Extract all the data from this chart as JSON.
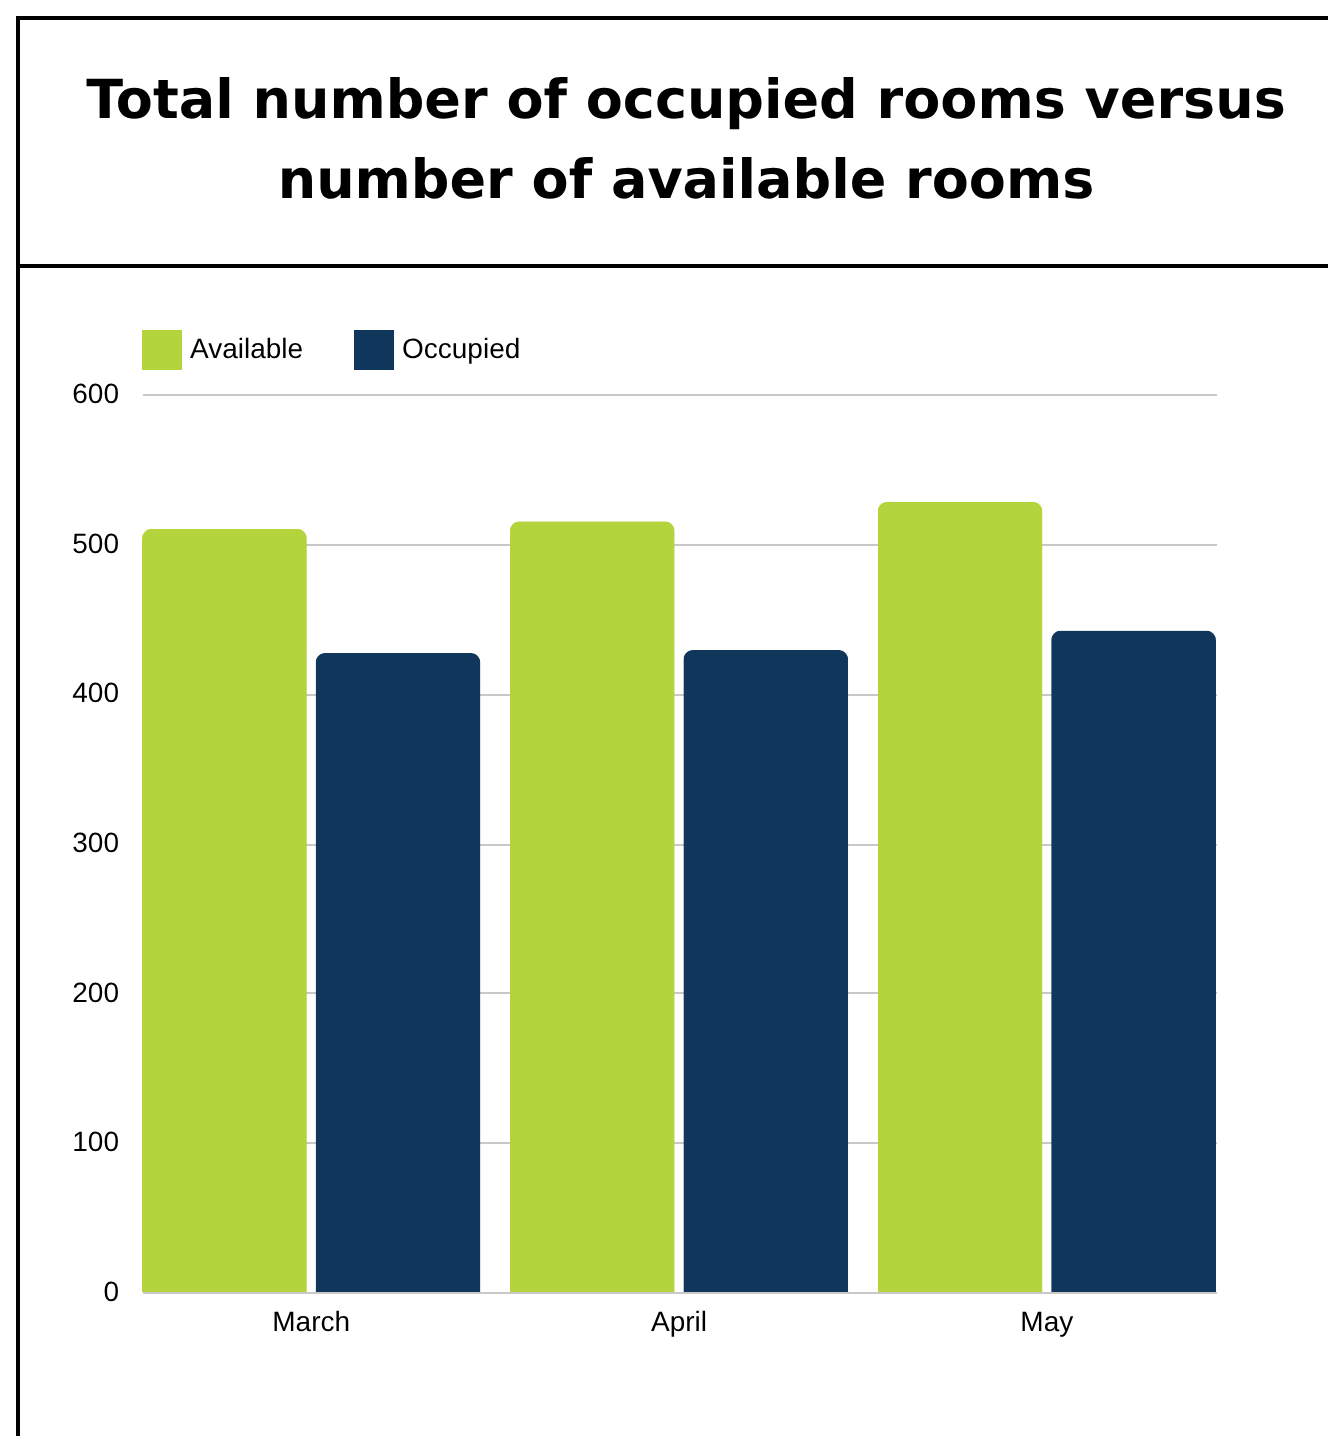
{
  "chart_data": {
    "type": "bar",
    "title": "Total number of occupied rooms versus number of available rooms",
    "categories": [
      "March",
      "April",
      "May"
    ],
    "series": [
      {
        "name": "Available",
        "color": "#b3d43d",
        "values": [
          510,
          515,
          528
        ]
      },
      {
        "name": "Occupied",
        "color": "#11365c",
        "values": [
          427,
          429,
          442
        ]
      }
    ],
    "ylim": [
      0,
      600
    ],
    "yticks": [
      0,
      100,
      200,
      300,
      400,
      500,
      600
    ],
    "grid": "y",
    "legend": "top"
  }
}
